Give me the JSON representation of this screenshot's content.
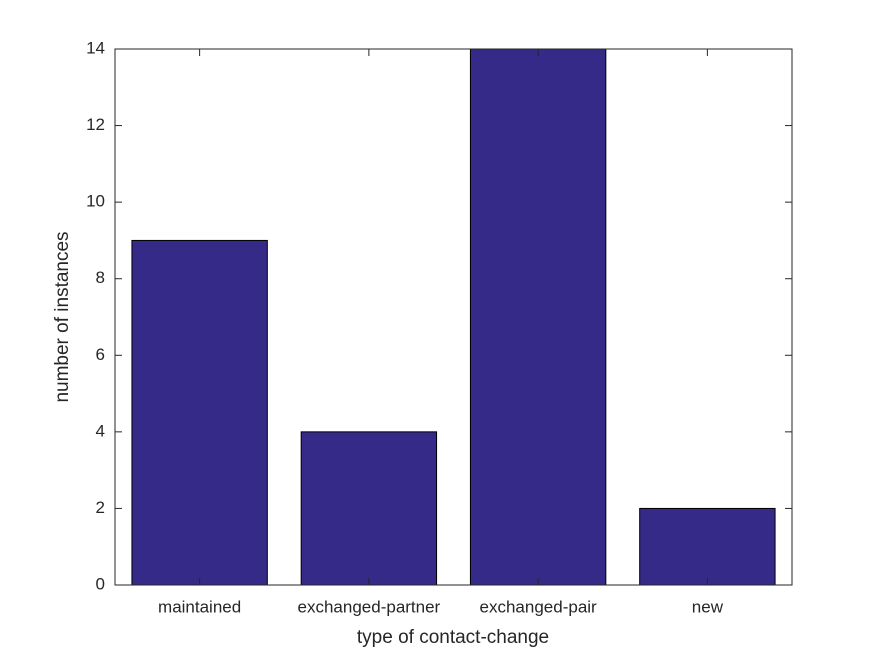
{
  "chart_data": {
    "type": "bar",
    "xlabel": "type of contact-change",
    "ylabel": "number of instances",
    "categories": [
      "maintained",
      "exchanged-partner",
      "exchanged-pair",
      "new"
    ],
    "values": [
      9,
      4,
      14,
      2
    ],
    "color": "#352a87",
    "ylim": [
      0,
      14
    ],
    "yticks": [
      0,
      2,
      4,
      6,
      8,
      10,
      12,
      14
    ]
  }
}
